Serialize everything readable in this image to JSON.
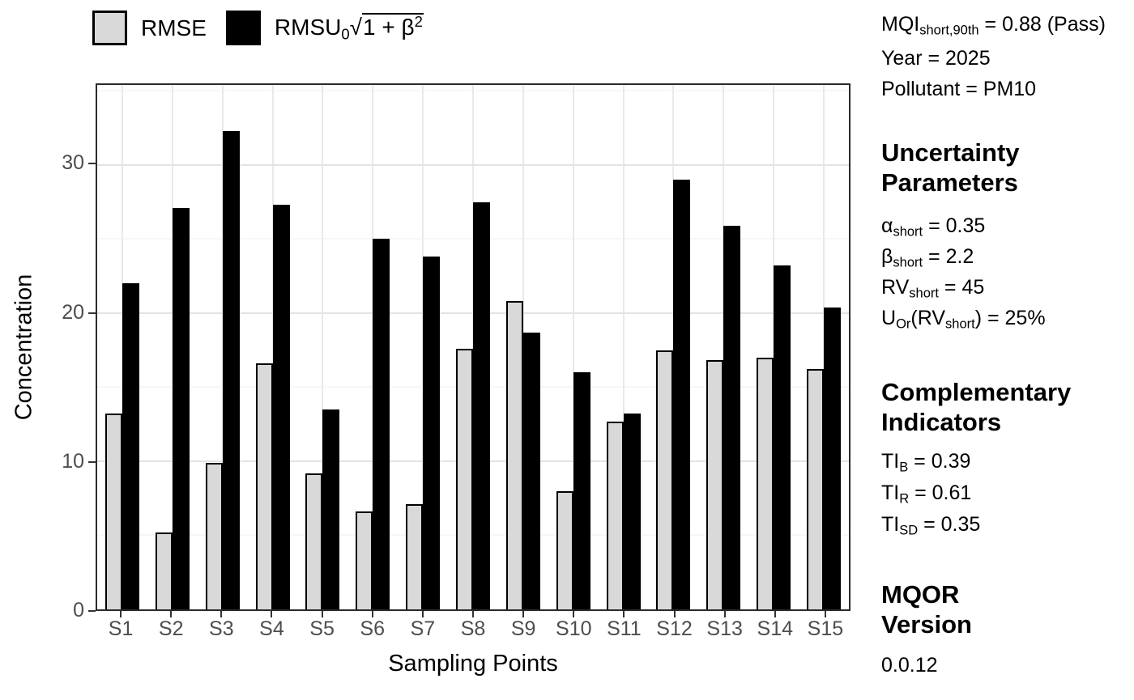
{
  "legend": {
    "items": [
      {
        "name": "RMSE",
        "swatch_color": "#d9d9d9",
        "label_segments": [
          {
            "t": "RMSE"
          }
        ]
      },
      {
        "name": "RMSU",
        "swatch_color": "#000000",
        "label_segments": [
          {
            "t": "RMSU"
          },
          {
            "t": "0",
            "s": "sub"
          },
          {
            "t": "√"
          },
          {
            "rad": [
              {
                "t": "1 + β"
              },
              {
                "t": "2",
                "s": "sup"
              }
            ]
          }
        ]
      }
    ]
  },
  "chart_data": {
    "type": "bar",
    "title": "",
    "xlabel": "Sampling Points",
    "ylabel": "Concentration",
    "categories": [
      "S1",
      "S2",
      "S3",
      "S4",
      "S5",
      "S6",
      "S7",
      "S8",
      "S9",
      "S10",
      "S11",
      "S12",
      "S13",
      "S14",
      "S15"
    ],
    "series": [
      {
        "name": "RMSE",
        "color": "#d9d9d9",
        "values": [
          13.2,
          5.2,
          9.9,
          16.6,
          9.2,
          6.6,
          7.1,
          17.6,
          20.8,
          8.0,
          12.7,
          17.5,
          16.8,
          17.0,
          16.2
        ]
      },
      {
        "name": "RMSU0·sqrt(1+β²)",
        "color": "#000000",
        "values": [
          22.0,
          27.1,
          32.3,
          27.3,
          13.5,
          25.0,
          23.8,
          27.5,
          18.7,
          16.0,
          13.2,
          29.0,
          25.9,
          23.2,
          20.4
        ]
      }
    ],
    "ylim": [
      0,
      35.4
    ],
    "yticks": [
      0,
      10,
      20,
      30
    ],
    "yminor": [
      5,
      15,
      25,
      35
    ],
    "grid": true,
    "legend_position": "top-left",
    "bar_stroke": "#000000"
  },
  "side_panel": {
    "summary_lines": [
      [
        {
          "t": "MQI"
        },
        {
          "t": "short,90th",
          "s": "sub"
        },
        {
          "t": " = 0.88 (Pass)"
        }
      ],
      [
        {
          "t": "Year = 2025"
        }
      ],
      [
        {
          "t": "Pollutant = PM10"
        }
      ]
    ],
    "uncertainty": {
      "header": "Uncertainty\nParameters",
      "lines": [
        [
          {
            "t": "α"
          },
          {
            "t": "short",
            "s": "sub"
          },
          {
            "t": " = 0.35"
          }
        ],
        [
          {
            "t": "β"
          },
          {
            "t": "short",
            "s": "sub"
          },
          {
            "t": " = 2.2"
          }
        ],
        [
          {
            "t": "RV"
          },
          {
            "t": "short",
            "s": "sub"
          },
          {
            "t": " = 45"
          }
        ],
        [
          {
            "t": "U"
          },
          {
            "t": "Or",
            "s": "sub"
          },
          {
            "t": "(RV"
          },
          {
            "t": "short",
            "s": "sub"
          },
          {
            "t": ") = 25%"
          }
        ]
      ]
    },
    "complementary": {
      "header": "Complementary\nIndicators",
      "lines": [
        [
          {
            "t": "TI"
          },
          {
            "t": "B",
            "s": "sub"
          },
          {
            "t": " = 0.39"
          }
        ],
        [
          {
            "t": "TI"
          },
          {
            "t": "R",
            "s": "sub"
          },
          {
            "t": " = 0.61"
          }
        ],
        [
          {
            "t": "TI"
          },
          {
            "t": "SD",
            "s": "sub"
          },
          {
            "t": " = 0.35"
          }
        ]
      ]
    },
    "version": {
      "header": "MQOR\nVersion",
      "value": "0.0.12"
    }
  },
  "colors": {
    "grid_major": "#e3e3e3",
    "grid_minor": "#efefef",
    "panel_border": "#2b2b2b",
    "tick_label": "#4d4d4d"
  }
}
